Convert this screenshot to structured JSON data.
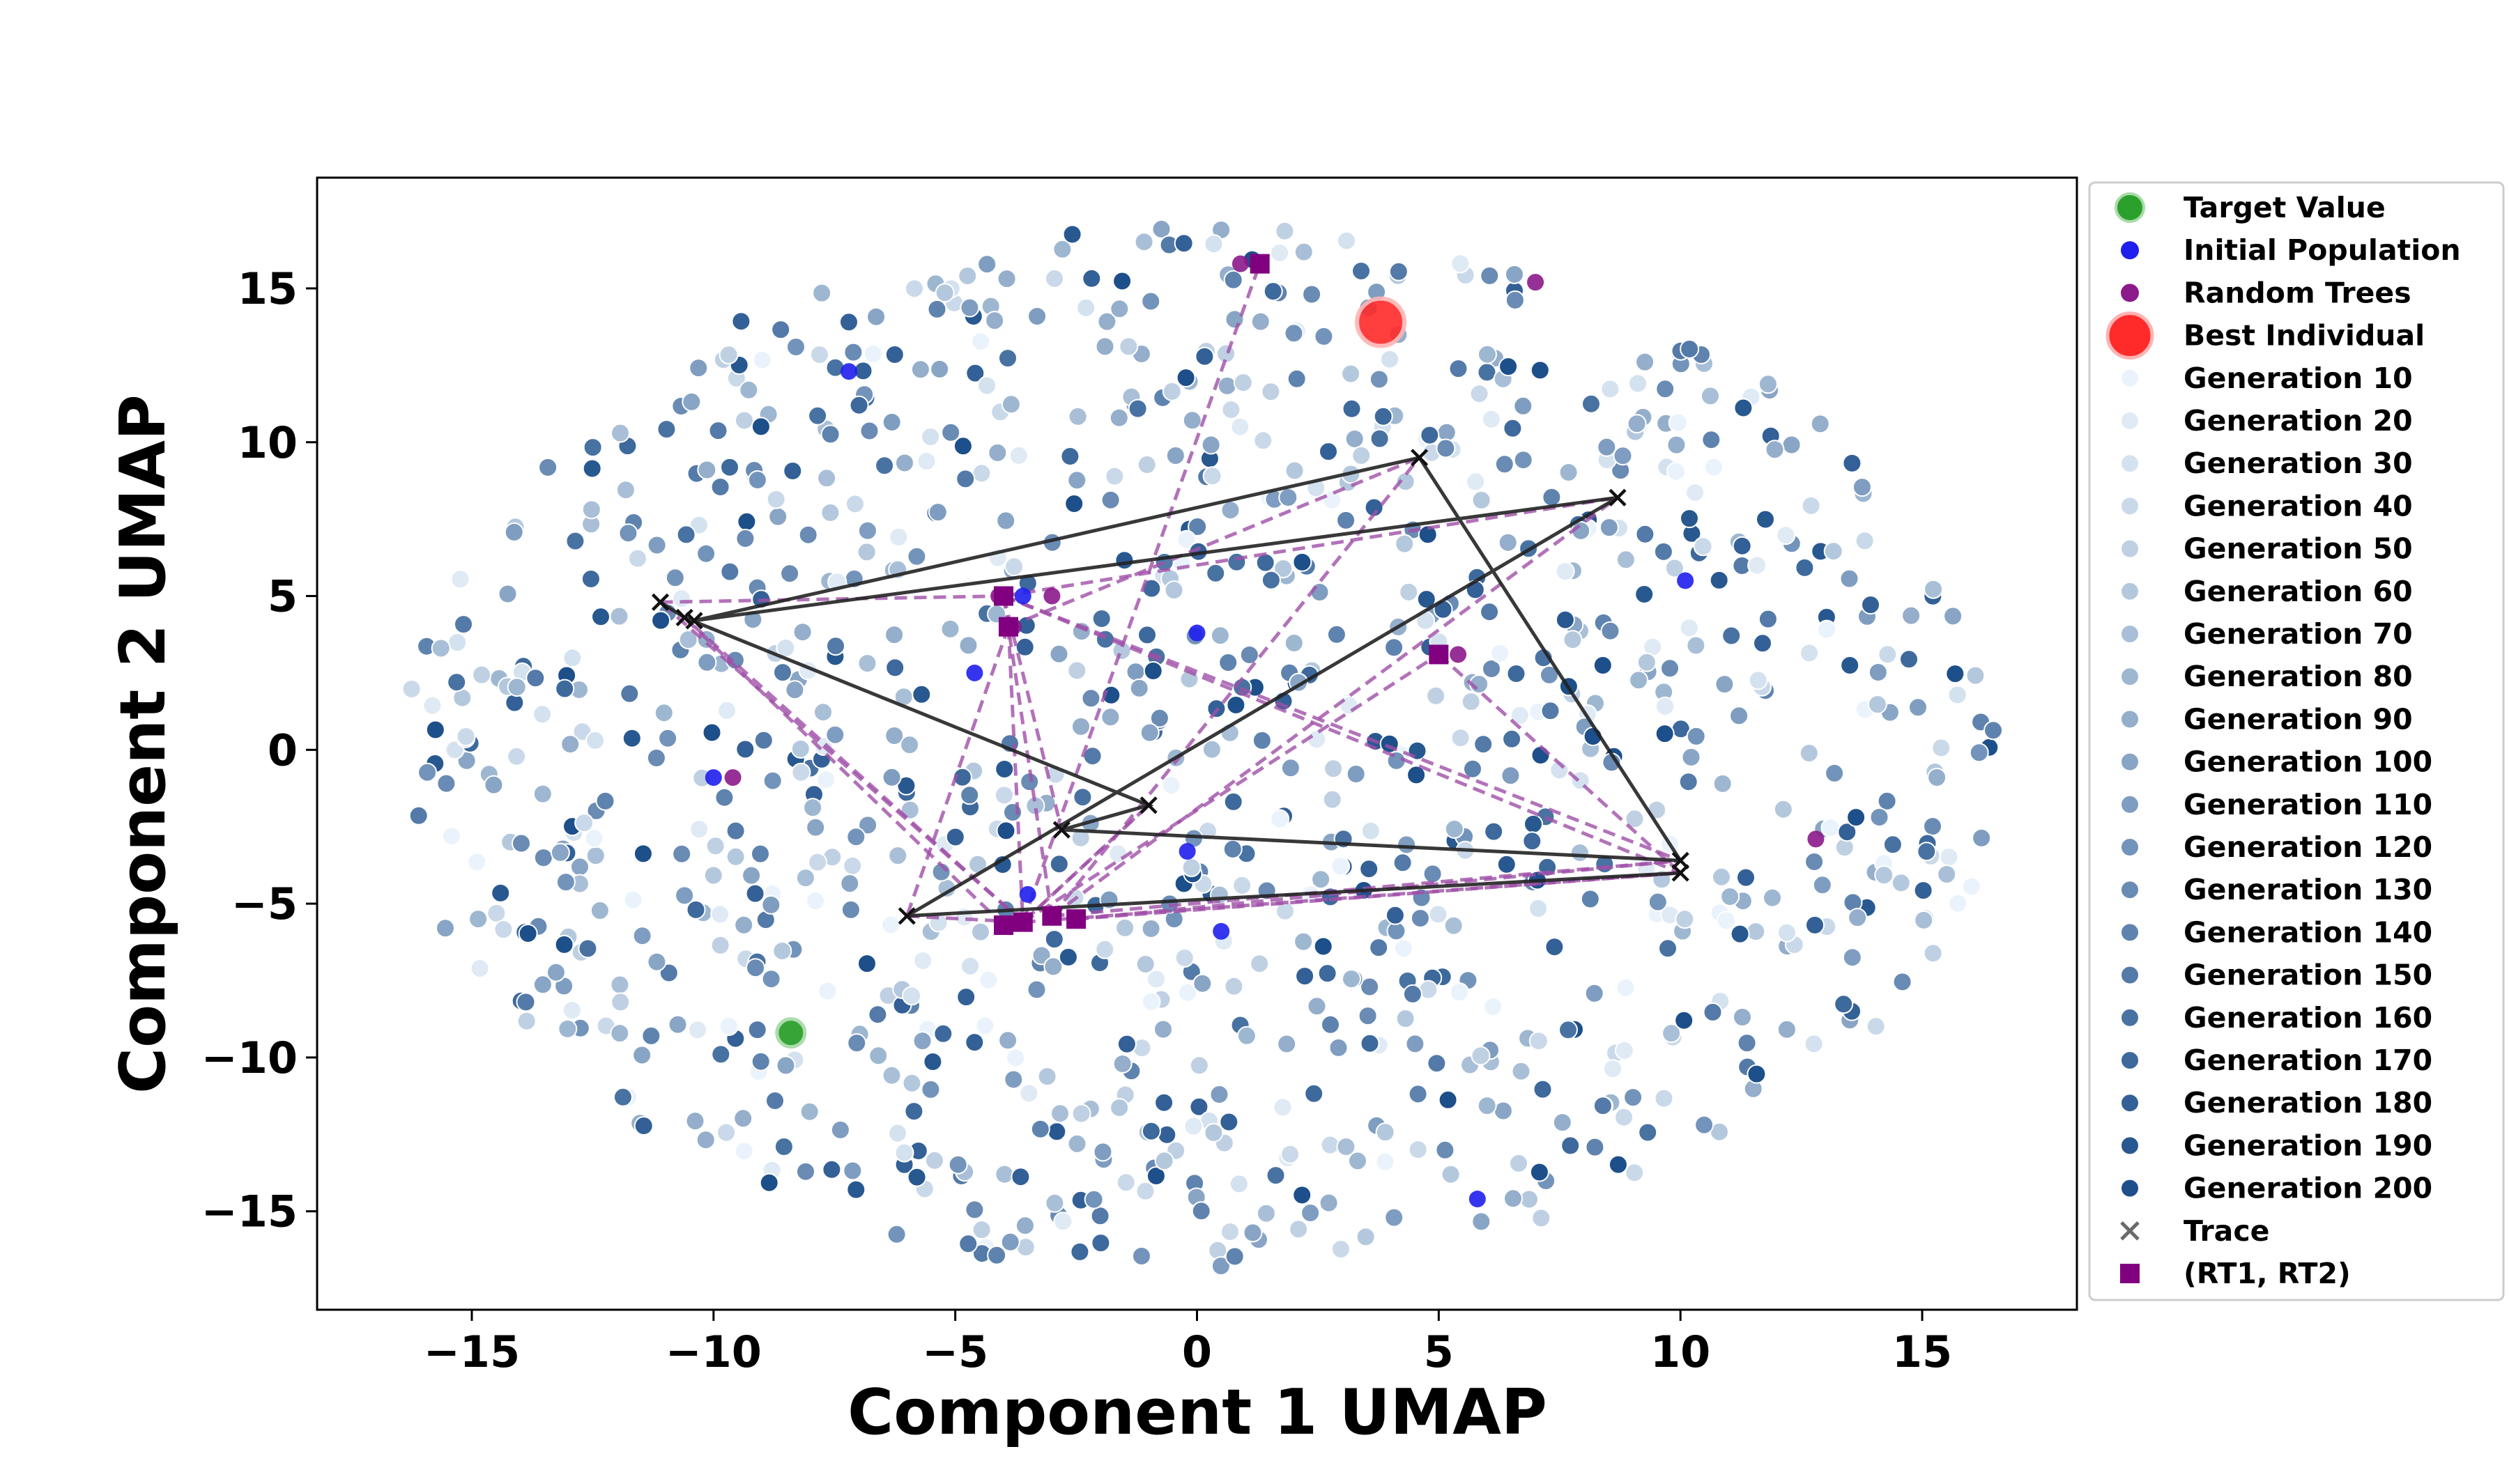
{
  "chart_data": {
    "type": "scatter",
    "title": "",
    "xlabel": "Component 1 UMAP",
    "ylabel": "Component 2 UMAP",
    "xlim": [
      -18.2,
      18.2
    ],
    "ylim": [
      -18.2,
      18.6
    ],
    "xticks": [
      -15,
      -10,
      -5,
      0,
      5,
      10,
      15
    ],
    "yticks": [
      -15,
      -10,
      -5,
      0,
      5,
      10,
      15
    ],
    "xtick_labels": [
      "−15",
      "−10",
      "−5",
      "0",
      "5",
      "10",
      "15"
    ],
    "ytick_labels": [
      "−15",
      "−10",
      "−5",
      "0",
      "5",
      "10",
      "15"
    ],
    "grid": false,
    "legend_position": "outside-right",
    "colors": {
      "target": "#2ca02c",
      "initial": "#1f1fee",
      "random_trees": "#8b1a8b",
      "best": "#ff2a2a",
      "trace": "#222222",
      "rt_marker": "#800080",
      "rt_line": "#a050a8",
      "generation_light": "#eaf3fb",
      "generation_dark": "#1d4f8a"
    },
    "series": [
      {
        "name": "Target Value",
        "kind": "target",
        "points": [
          [
            -8.4,
            -9.2
          ]
        ]
      },
      {
        "name": "Initial Population",
        "kind": "initial",
        "points": [
          [
            -7.2,
            12.3
          ],
          [
            -3.5,
            -4.7
          ],
          [
            0.5,
            -5.9
          ],
          [
            5.8,
            -14.6
          ],
          [
            10.1,
            5.5
          ],
          [
            -10.0,
            -0.9
          ],
          [
            -0.2,
            -3.3
          ],
          [
            -3.6,
            5.0
          ],
          [
            0.0,
            3.8
          ],
          [
            -4.6,
            2.5
          ]
        ]
      },
      {
        "name": "Random Trees",
        "kind": "random",
        "points": [
          [
            0.9,
            15.8
          ],
          [
            7.0,
            15.2
          ],
          [
            12.8,
            -2.9
          ],
          [
            -9.6,
            -0.9
          ],
          [
            -4.1,
            5.0
          ],
          [
            -3.0,
            5.0
          ],
          [
            5.4,
            3.1
          ],
          [
            -3.8,
            4.0
          ]
        ]
      },
      {
        "name": "Best Individual",
        "kind": "best",
        "points": [
          [
            3.8,
            13.9
          ]
        ]
      },
      {
        "name": "Generation 10",
        "kind": "gen",
        "shade": 0
      },
      {
        "name": "Generation 20",
        "kind": "gen",
        "shade": 1
      },
      {
        "name": "Generation 30",
        "kind": "gen",
        "shade": 2
      },
      {
        "name": "Generation 40",
        "kind": "gen",
        "shade": 3
      },
      {
        "name": "Generation 50",
        "kind": "gen",
        "shade": 4
      },
      {
        "name": "Generation 60",
        "kind": "gen",
        "shade": 5
      },
      {
        "name": "Generation 70",
        "kind": "gen",
        "shade": 6
      },
      {
        "name": "Generation 80",
        "kind": "gen",
        "shade": 7
      },
      {
        "name": "Generation 90",
        "kind": "gen",
        "shade": 8
      },
      {
        "name": "Generation 100",
        "kind": "gen",
        "shade": 9
      },
      {
        "name": "Generation 110",
        "kind": "gen",
        "shade": 10
      },
      {
        "name": "Generation 120",
        "kind": "gen",
        "shade": 11
      },
      {
        "name": "Generation 130",
        "kind": "gen",
        "shade": 12
      },
      {
        "name": "Generation 140",
        "kind": "gen",
        "shade": 13
      },
      {
        "name": "Generation 150",
        "kind": "gen",
        "shade": 14
      },
      {
        "name": "Generation 160",
        "kind": "gen",
        "shade": 15
      },
      {
        "name": "Generation 170",
        "kind": "gen",
        "shade": 16
      },
      {
        "name": "Generation 180",
        "kind": "gen",
        "shade": 17
      },
      {
        "name": "Generation 190",
        "kind": "gen",
        "shade": 18
      },
      {
        "name": "Generation 200",
        "kind": "gen",
        "shade": 19
      },
      {
        "name": "Trace",
        "kind": "trace",
        "points": [
          [
            -11.1,
            4.8
          ],
          [
            -10.6,
            4.3
          ],
          [
            -1.0,
            -1.8
          ],
          [
            -2.8,
            -2.6
          ],
          [
            10.0,
            -3.6
          ],
          [
            4.6,
            9.5
          ],
          [
            -10.4,
            4.2
          ],
          [
            8.7,
            8.2
          ],
          [
            -6.0,
            -5.4
          ],
          [
            10.0,
            -4.0
          ]
        ]
      },
      {
        "name": "(RT1, RT2)",
        "kind": "rt",
        "points": [
          [
            1.3,
            15.8
          ],
          [
            -4.0,
            5.0
          ],
          [
            -3.9,
            4.0
          ],
          [
            5.0,
            3.1
          ],
          [
            -3.6,
            -5.6
          ],
          [
            -3.0,
            -5.4
          ],
          [
            -2.5,
            -5.5
          ],
          [
            -4.0,
            -5.7
          ]
        ]
      }
    ],
    "rt_links": [
      [
        [
          -3.6,
          -5.6
        ],
        [
          1.3,
          15.8
        ]
      ],
      [
        [
          -3.6,
          -5.6
        ],
        [
          -10.6,
          4.3
        ]
      ],
      [
        [
          -3.6,
          -5.6
        ],
        [
          -11.1,
          4.8
        ]
      ],
      [
        [
          -3.6,
          -5.6
        ],
        [
          5.0,
          3.1
        ]
      ],
      [
        [
          -3.6,
          -5.6
        ],
        [
          10.0,
          -4.0
        ]
      ],
      [
        [
          -3.0,
          -5.4
        ],
        [
          10.0,
          -3.6
        ]
      ],
      [
        [
          -3.0,
          -5.4
        ],
        [
          8.7,
          8.2
        ]
      ],
      [
        [
          -2.5,
          -5.5
        ],
        [
          10.0,
          -3.6
        ]
      ],
      [
        [
          -4.0,
          -5.7
        ],
        [
          -10.6,
          4.3
        ]
      ],
      [
        [
          -4.0,
          5.0
        ],
        [
          10.0,
          -3.6
        ]
      ],
      [
        [
          -4.0,
          5.0
        ],
        [
          10.0,
          -4.0
        ]
      ],
      [
        [
          -4.0,
          5.0
        ],
        [
          8.7,
          8.2
        ]
      ],
      [
        [
          -3.9,
          4.0
        ],
        [
          4.6,
          9.5
        ]
      ],
      [
        [
          -3.9,
          4.0
        ],
        [
          -3.6,
          -5.6
        ]
      ],
      [
        [
          -4.0,
          5.0
        ],
        [
          -3.0,
          -5.4
        ]
      ],
      [
        [
          -11.1,
          4.8
        ],
        [
          -4.0,
          5.0
        ]
      ],
      [
        [
          -6.0,
          -5.4
        ],
        [
          -3.6,
          -5.6
        ]
      ],
      [
        [
          -1.0,
          -1.8
        ],
        [
          -3.6,
          -5.6
        ]
      ],
      [
        [
          5.0,
          3.1
        ],
        [
          10.0,
          -4.0
        ]
      ],
      [
        [
          -4.0,
          5.0
        ],
        [
          -2.8,
          -2.6
        ]
      ],
      [
        [
          -3.0,
          -5.4
        ],
        [
          4.6,
          9.5
        ]
      ],
      [
        [
          -3.9,
          4.0
        ],
        [
          -6.0,
          -5.4
        ]
      ],
      [
        [
          -2.5,
          -5.5
        ],
        [
          10.0,
          -4.0
        ]
      ],
      [
        [
          -3.6,
          -5.6
        ],
        [
          -1.0,
          -1.8
        ]
      ]
    ],
    "generation_cloud": {
      "count": 1100,
      "radius_x": 16.6,
      "radius_y": 17.0,
      "seed": 7
    }
  }
}
